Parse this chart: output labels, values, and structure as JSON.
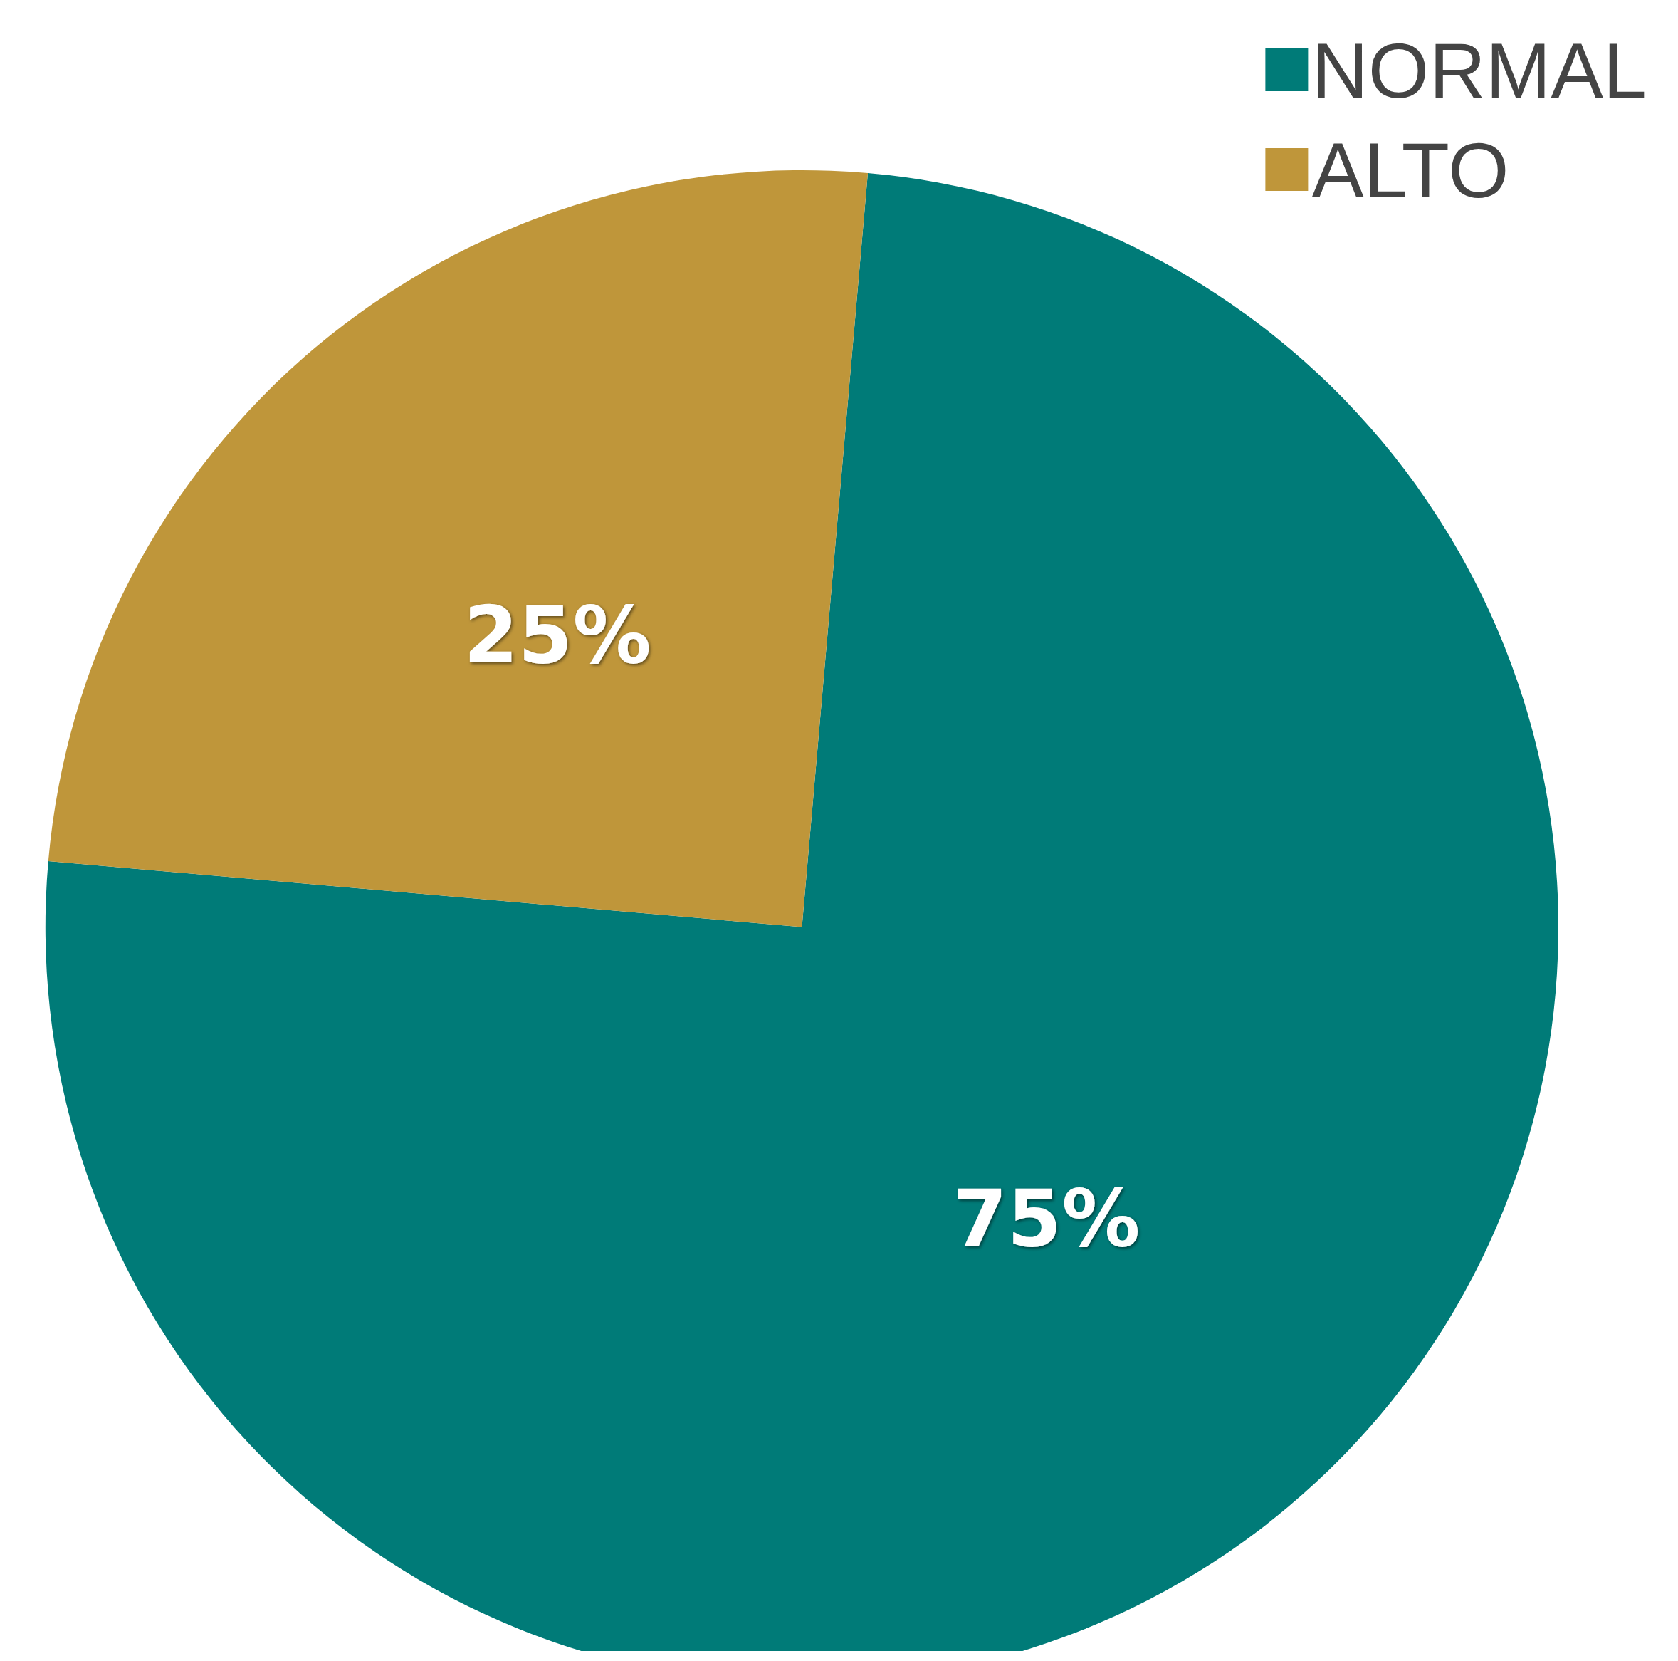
{
  "chart_data": {
    "type": "pie",
    "categories": [
      "NORMAL",
      "ALTO"
    ],
    "values": [
      75,
      25
    ],
    "colors": [
      "#007b78",
      "#bf963a"
    ],
    "value_labels": [
      "75%",
      "25%"
    ],
    "legend": "top right"
  }
}
